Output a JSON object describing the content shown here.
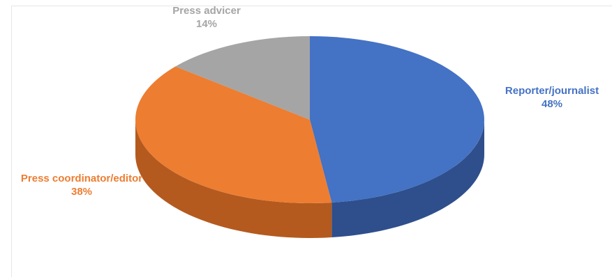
{
  "chart_data": {
    "type": "pie",
    "style": "3d",
    "slices": [
      {
        "category": "Reporter/journalist",
        "value": 48,
        "label": "48%",
        "color": "#4472c4",
        "side_color": "#2e4f8c"
      },
      {
        "category": "Press coordinator/editor",
        "value": 38,
        "label": "38%",
        "color": "#ed7d31",
        "side_color": "#b45a1f"
      },
      {
        "category": "Press advicer",
        "value": 14,
        "label": "14%",
        "color": "#a5a5a5",
        "side_color": "#7a7a7a"
      }
    ],
    "start_angle_deg": 90,
    "direction": "clockwise",
    "legend": "none"
  },
  "labels": {
    "reporter_category": "Reporter/journalist",
    "reporter_pct": "48%",
    "coordinator_category": "Press coordinator/editor",
    "coordinator_pct": "38%",
    "advicer_category": "Press advicer",
    "advicer_pct": "14%"
  }
}
